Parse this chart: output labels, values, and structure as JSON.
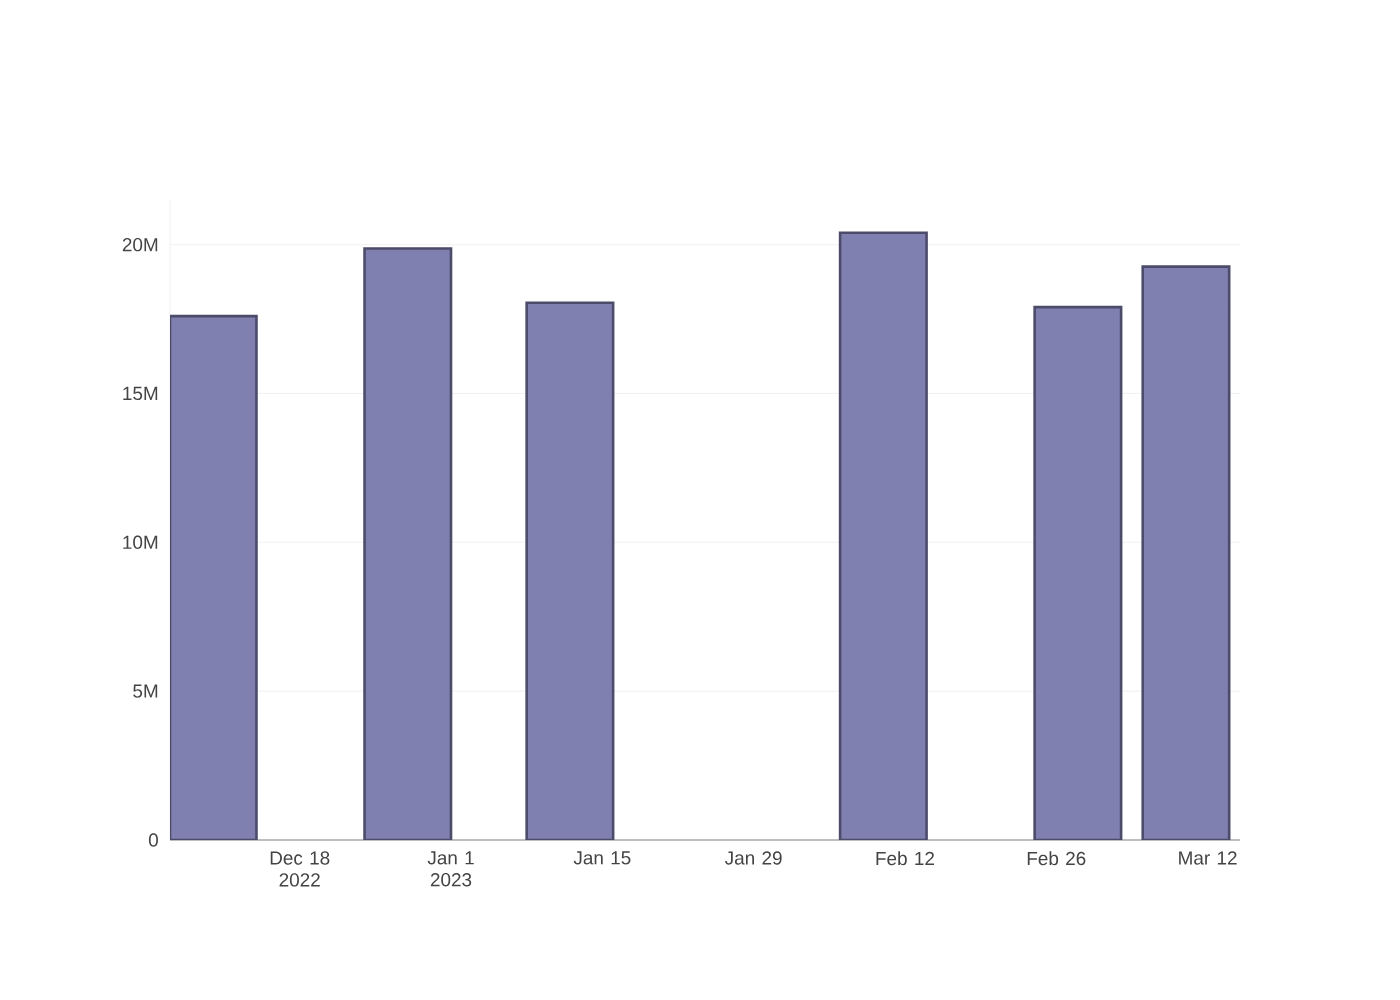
{
  "chart_data": {
    "type": "bar",
    "x": [
      "2022-12-10",
      "2022-12-28",
      "2023-01-12",
      "2023-02-10",
      "2023-02-28",
      "2023-03-10"
    ],
    "values": [
      17600000,
      19870000,
      18050000,
      20400000,
      17900000,
      19260000
    ],
    "color": "#7f7fb0",
    "xlim": [
      "2022-12-06",
      "2023-03-15"
    ],
    "xticks": [
      {
        "value": "2022-12-18",
        "label": "Dec 18 2022"
      },
      {
        "value": "2023-01-01",
        "label": "Jan 1 2023"
      },
      {
        "value": "2023-01-15",
        "label": "Jan 15"
      },
      {
        "value": "2023-01-29",
        "label": "Jan 29"
      },
      {
        "value": "2023-02-12",
        "label": "Feb 12"
      },
      {
        "value": "2023-02-26",
        "label": "Feb 26"
      },
      {
        "value": "2023-03-12",
        "label": "Mar 12"
      }
    ],
    "ylim": [
      0,
      21500000
    ],
    "yticks": [
      {
        "value": 0,
        "label": "0"
      },
      {
        "value": 5000000,
        "label": "5M"
      },
      {
        "value": 10000000,
        "label": "10M"
      },
      {
        "value": 15000000,
        "label": "15M"
      },
      {
        "value": 20000000,
        "label": "20M"
      }
    ],
    "grid": "y"
  }
}
